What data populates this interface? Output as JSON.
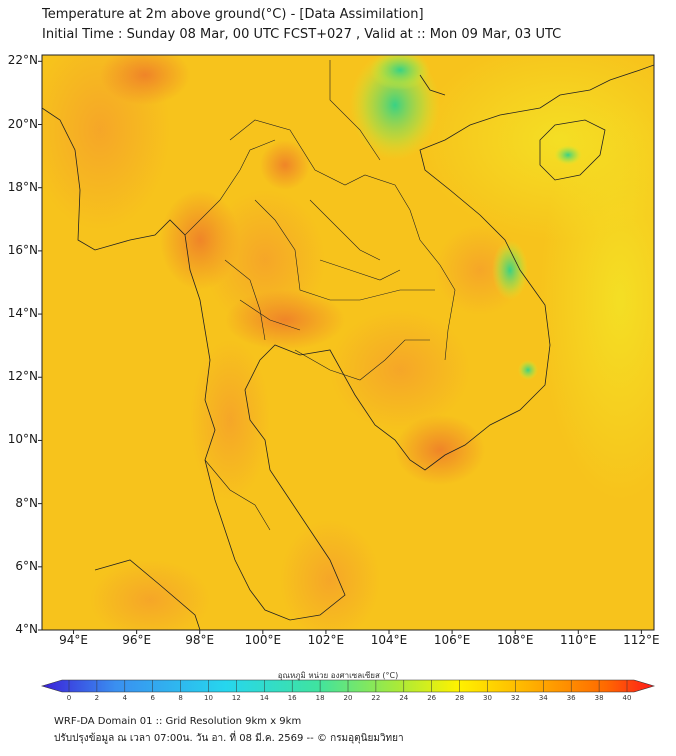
{
  "header": {
    "title": "Temperature at 2m above ground(°C) - [Data Assimilation]",
    "subtitle": "Initial Time : Sunday 08 Mar, 00 UTC FCST+027 , Valid at :: Mon 09 Mar, 03 UTC"
  },
  "map": {
    "lat_labels": [
      "22°N",
      "20°N",
      "18°N",
      "16°N",
      "14°N",
      "12°N",
      "10°N",
      "8°N",
      "6°N",
      "4°N"
    ],
    "lon_labels": [
      "94°E",
      "96°E",
      "98°E",
      "100°E",
      "102°E",
      "104°E",
      "106°E",
      "108°E",
      "110°E",
      "112°E"
    ],
    "lat_range": [
      4,
      22.2
    ],
    "lon_range": [
      93,
      112.4
    ],
    "background_color": "#f7c31c"
  },
  "colorbar": {
    "title": "อุณหภูมิ หน่วย องศาเซลเซียส (°C)",
    "ticks": [
      "0",
      "2",
      "4",
      "6",
      "8",
      "10",
      "12",
      "14",
      "16",
      "18",
      "20",
      "22",
      "24",
      "26",
      "28",
      "30",
      "32",
      "34",
      "36",
      "38",
      "40"
    ],
    "range": [
      0,
      40
    ],
    "colors": [
      "#3b20d8",
      "#3a8ff0",
      "#26d6ee",
      "#3fe3a0",
      "#a8ea3a",
      "#fff200",
      "#ffb000",
      "#ff6a00",
      "#ff1a1a"
    ]
  },
  "footer": {
    "line1": "WRF-DA Domain 01 :: Grid Resolution 9km x 9km",
    "line2": "ปรับปรุงข้อมูล ณ เวลา 07:00น. วัน อา. ที่ 08 มี.ค. 2569 -- © กรมอุตุนิยมวิทยา"
  }
}
